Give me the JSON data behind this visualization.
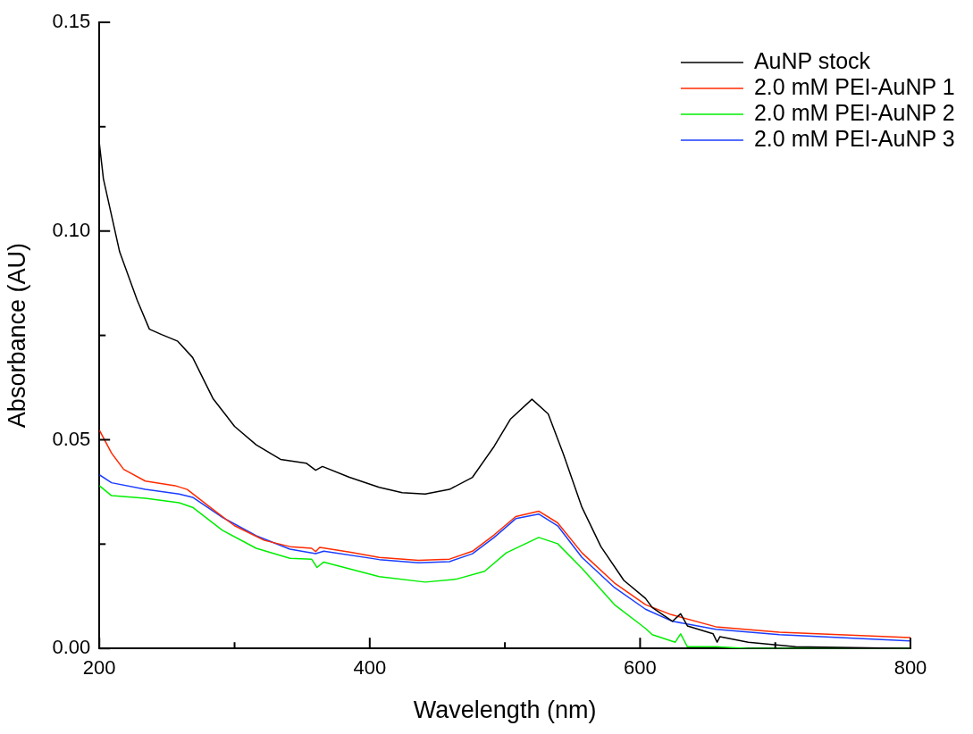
{
  "chart_data": {
    "type": "line",
    "xlabel": "Wavelength (nm)",
    "ylabel": "Absorbance (AU)",
    "xlim": [
      200,
      800
    ],
    "xticks": [
      200,
      {
        "value": 300,
        "label": null
      },
      400,
      {
        "value": 500,
        "label": null
      },
      600,
      {
        "value": 700,
        "label": null
      },
      800
    ],
    "ylim": [
      0,
      0.15
    ],
    "yticks": [
      {
        "value": 0,
        "label": "0.00"
      },
      {
        "value": 0.025,
        "label": null
      },
      {
        "value": 0.05,
        "label": "0.05"
      },
      {
        "value": 0.075,
        "label": null
      },
      {
        "value": 0.1,
        "label": "0.10"
      },
      {
        "value": 0.125,
        "label": null
      },
      {
        "value": 0.15,
        "label": "0.15"
      }
    ],
    "grid": false,
    "legend": "top right",
    "marker": "none",
    "line_style": "solid",
    "series": [
      {
        "name": "AuNP stock",
        "color": "#000000",
        "x": [
          200,
          203,
          215,
          228,
          237,
          246,
          258,
          269,
          284,
          300,
          316,
          334,
          353,
          360,
          365,
          385,
          407,
          424,
          441,
          459,
          476,
          492,
          504,
          520,
          532,
          543,
          557,
          571,
          588,
          604,
          609,
          624,
          630,
          635,
          654,
          657,
          659,
          680,
          715,
          800
        ],
        "values": [
          0.121,
          0.1125,
          0.095,
          0.0834,
          0.0765,
          0.0752,
          0.0736,
          0.0697,
          0.0599,
          0.0532,
          0.0488,
          0.0453,
          0.0444,
          0.0427,
          0.0436,
          0.041,
          0.0386,
          0.0373,
          0.037,
          0.0381,
          0.041,
          0.0484,
          0.0549,
          0.0597,
          0.0562,
          0.0468,
          0.0338,
          0.0244,
          0.0163,
          0.012,
          0.0098,
          0.0065,
          0.0083,
          0.0054,
          0.0035,
          0.0015,
          0.0028,
          0.0015,
          0.0004,
          0.0
        ]
      },
      {
        "name": "2.0 mM PEI-AuNP 1",
        "color": "#ff2a00",
        "x": [
          200,
          209,
          218,
          234,
          256,
          265,
          282,
          300,
          322,
          341,
          357,
          360,
          363,
          385,
          407,
          436,
          459,
          476,
          492,
          508,
          525,
          539,
          557,
          581,
          604,
          623,
          656,
          703,
          800
        ],
        "values": [
          0.0523,
          0.0468,
          0.0429,
          0.0401,
          0.039,
          0.0381,
          0.0338,
          0.0294,
          0.0259,
          0.0244,
          0.024,
          0.0232,
          0.0242,
          0.0231,
          0.0218,
          0.0211,
          0.0214,
          0.0233,
          0.0272,
          0.0316,
          0.0329,
          0.0301,
          0.0229,
          0.0157,
          0.0105,
          0.0081,
          0.0052,
          0.0039,
          0.0026
        ]
      },
      {
        "name": "2.0 mM PEI-AuNP 2",
        "color": "#00ee00",
        "x": [
          200,
          209,
          234,
          259,
          269,
          291,
          316,
          341,
          357,
          361,
          366,
          407,
          441,
          464,
          485,
          501,
          525,
          539,
          557,
          581,
          604,
          609,
          626,
          630,
          635,
          656,
          680,
          800
        ],
        "values": [
          0.039,
          0.0366,
          0.036,
          0.0349,
          0.0338,
          0.0283,
          0.024,
          0.0216,
          0.0214,
          0.0194,
          0.0207,
          0.0172,
          0.0159,
          0.0166,
          0.0185,
          0.0229,
          0.0266,
          0.0251,
          0.0192,
          0.0105,
          0.0048,
          0.0033,
          0.0015,
          0.0035,
          0.0004,
          0.0004,
          0.0,
          0.0
        ]
      },
      {
        "name": "2.0 mM PEI-AuNP 3",
        "color": "#1a3cff",
        "x": [
          200,
          209,
          234,
          259,
          269,
          291,
          316,
          341,
          360,
          366,
          407,
          436,
          459,
          476,
          492,
          508,
          525,
          539,
          557,
          581,
          604,
          624,
          656,
          703,
          800
        ],
        "values": [
          0.0416,
          0.0397,
          0.0381,
          0.037,
          0.0362,
          0.0314,
          0.027,
          0.0238,
          0.0227,
          0.0233,
          0.0213,
          0.0205,
          0.0208,
          0.0227,
          0.0266,
          0.0311,
          0.0322,
          0.0294,
          0.0218,
          0.0146,
          0.0094,
          0.0065,
          0.0046,
          0.0033,
          0.0018
        ]
      }
    ]
  }
}
